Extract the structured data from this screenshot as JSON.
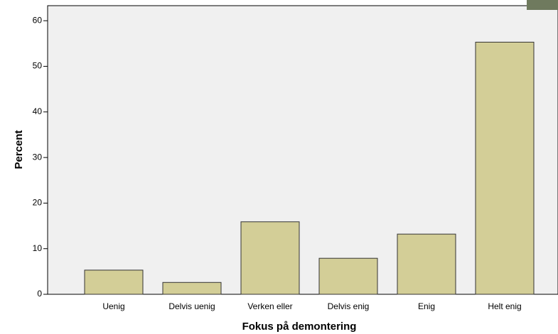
{
  "chart_data": {
    "type": "bar",
    "x_label": "Fokus på demontering",
    "y_label": "Percent",
    "categories": [
      "Uenig",
      "Delvis uenig",
      "Verken eller",
      "Delvis enig",
      "Enig",
      "Helt enig"
    ],
    "values": [
      5.3,
      2.6,
      15.9,
      7.9,
      13.2,
      55.3
    ],
    "color": "#d3ce97",
    "ylim": [
      0,
      63.3
    ],
    "yticks": [
      0,
      10,
      20,
      30,
      40,
      50,
      60
    ]
  }
}
